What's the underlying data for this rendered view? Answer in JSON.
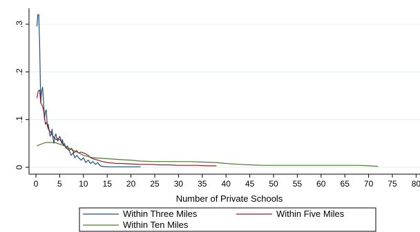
{
  "chart_data": {
    "type": "line",
    "title": "",
    "xlabel": "Number of Private Schools",
    "ylabel": "",
    "xlim": [
      0,
      80
    ],
    "ylim": [
      0,
      0.33
    ],
    "xticks": [
      0,
      5,
      10,
      15,
      20,
      25,
      30,
      35,
      40,
      45,
      50,
      55,
      60,
      65,
      70,
      75,
      80
    ],
    "yticks": [
      0,
      0.1,
      0.2,
      0.3
    ],
    "ytick_labels": [
      "0",
      ".1",
      ".2",
      ".3"
    ],
    "grid": true,
    "legend_position": "bottom",
    "series": [
      {
        "name": "Within Three Miles",
        "color": "#1f4e79",
        "x": [
          0.2,
          0.4,
          0.6,
          0.8,
          1.0,
          1.2,
          1.4,
          1.6,
          1.8,
          2.0,
          2.2,
          2.4,
          2.6,
          2.8,
          3.0,
          3.2,
          3.4,
          3.6,
          3.8,
          4.0,
          4.2,
          4.4,
          4.6,
          4.8,
          5.0,
          5.2,
          5.4,
          5.6,
          5.8,
          6.0,
          6.3,
          6.6,
          7.0,
          7.4,
          7.8,
          8.2,
          8.6,
          9.0,
          9.5,
          10.0,
          10.5,
          11.0,
          11.5,
          12.0,
          12.5,
          13.0,
          13.5,
          14.0,
          15.0,
          16.0,
          17.0,
          18.0,
          19.0,
          20.0,
          21.0,
          22.0
        ],
        "y": [
          0.295,
          0.32,
          0.32,
          0.25,
          0.135,
          0.16,
          0.168,
          0.14,
          0.1,
          0.118,
          0.12,
          0.085,
          0.09,
          0.075,
          0.065,
          0.07,
          0.08,
          0.06,
          0.05,
          0.065,
          0.07,
          0.06,
          0.055,
          0.06,
          0.065,
          0.06,
          0.05,
          0.058,
          0.045,
          0.05,
          0.04,
          0.045,
          0.035,
          0.025,
          0.03,
          0.02,
          0.025,
          0.02,
          0.015,
          0.02,
          0.01,
          0.015,
          0.008,
          0.012,
          0.006,
          0.01,
          0.003,
          0.002,
          0.001,
          0.001,
          0.001,
          0.001,
          0.001,
          0.001,
          0.001,
          0.001
        ]
      },
      {
        "name": "Within  Five Miles",
        "color": "#8b1c2b",
        "x": [
          0.2,
          0.5,
          0.8,
          1.0,
          1.3,
          1.6,
          2.0,
          2.3,
          2.6,
          3.0,
          3.3,
          3.6,
          4.0,
          4.3,
          4.6,
          5.0,
          5.3,
          5.6,
          6.0,
          6.5,
          7.0,
          7.5,
          8.0,
          8.5,
          9.0,
          9.5,
          10.0,
          10.5,
          11.0,
          11.5,
          12.0,
          13.0,
          14.0,
          15.0,
          16.0,
          17.0,
          18.0,
          20.0,
          22.0,
          24.0,
          26.0,
          28.0,
          30.0,
          32.0,
          34.0,
          36.0,
          38.0
        ],
        "y": [
          0.145,
          0.16,
          0.162,
          0.135,
          0.13,
          0.12,
          0.09,
          0.095,
          0.08,
          0.075,
          0.07,
          0.065,
          0.06,
          0.058,
          0.06,
          0.058,
          0.055,
          0.05,
          0.045,
          0.04,
          0.035,
          0.04,
          0.03,
          0.035,
          0.03,
          0.032,
          0.03,
          0.028,
          0.025,
          0.02,
          0.018,
          0.015,
          0.012,
          0.01,
          0.009,
          0.008,
          0.008,
          0.007,
          0.006,
          0.006,
          0.005,
          0.005,
          0.004,
          0.004,
          0.004,
          0.003,
          0.003
        ]
      },
      {
        "name": "Within Ten Miles",
        "color": "#4a7a2c",
        "x": [
          0.2,
          2.0,
          4.0,
          6.0,
          8.0,
          10.0,
          12.0,
          15.0,
          18.0,
          20.0,
          22.0,
          25.0,
          28.0,
          30.0,
          32.0,
          35.0,
          38.0,
          40.0,
          43.0,
          45.0,
          48.0,
          50.0,
          55.0,
          60.0,
          65.0,
          68.0,
          70.0,
          72.0
        ],
        "y": [
          0.045,
          0.052,
          0.052,
          0.045,
          0.035,
          0.025,
          0.02,
          0.018,
          0.016,
          0.015,
          0.013,
          0.012,
          0.012,
          0.012,
          0.012,
          0.011,
          0.01,
          0.008,
          0.006,
          0.005,
          0.004,
          0.004,
          0.004,
          0.004,
          0.004,
          0.004,
          0.003,
          0.002
        ]
      }
    ]
  }
}
